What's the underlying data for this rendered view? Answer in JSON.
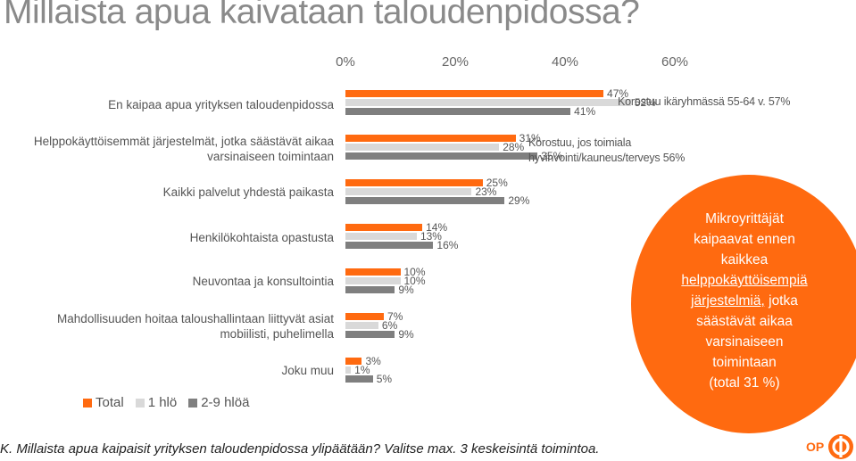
{
  "title": "Millaista apua kaivataan taloudenpidossa?",
  "footer": "K. Millaista apua kaipaisit yrityksen taloudenpidossa ylipäätään? Valitse max. 3 keskeisintä toimintoa.",
  "logo": {
    "text": "OP",
    "icon": "op-logo-icon"
  },
  "colors": {
    "total": "#ff6a10",
    "one_person": "#d9d9d9",
    "two_nine": "#7f7f7f",
    "highlight": "#ff6a10"
  },
  "chart_data": {
    "type": "bar",
    "orientation": "horizontal",
    "xlim": [
      0,
      60
    ],
    "x_ticks": [
      "0%",
      "20%",
      "40%",
      "60%"
    ],
    "legend_position": "bottom-left",
    "categories": [
      "En kaipaa apua yrityksen taloudenpidossa",
      "Helppokäyttöisemmät järjestelmät, jotka säästävät aikaa varsinaiseen toimintaan",
      "Kaikki palvelut yhdestä paikasta",
      "Henkilökohtaista opastusta",
      "Neuvontaa ja konsultointia",
      "Mahdollisuuden hoitaa taloushallintaan liittyvät asiat mobiilisti, puhelimella",
      "Joku muu"
    ],
    "series": [
      {
        "name": "Total",
        "values": [
          47,
          31,
          25,
          14,
          10,
          7,
          3
        ],
        "labels": [
          "47%",
          "31%",
          "25%",
          "14%",
          "10%",
          "7%",
          "3%"
        ]
      },
      {
        "name": "1 hlö",
        "values": [
          52,
          28,
          23,
          13,
          10,
          6,
          1
        ],
        "labels": [
          "52%",
          "28%",
          "23%",
          "13%",
          "10%",
          "6%",
          "1%"
        ]
      },
      {
        "name": "2-9 hlöä",
        "values": [
          41,
          35,
          29,
          16,
          9,
          9,
          5
        ],
        "labels": [
          "41%",
          "35%",
          "29%",
          "16%",
          "9%",
          "9%",
          "5%"
        ]
      }
    ],
    "annotations": [
      {
        "category": 0,
        "text": "Korostuu ikäryhmässä 55-64 v. 57%"
      },
      {
        "category": 1,
        "lines": [
          "Korostuu, jos toimiala",
          "hyvinvointi/kauneus/terveys 56%"
        ]
      }
    ]
  },
  "callout": {
    "lines": [
      {
        "text": "Mikroyrittäjät",
        "underline": false
      },
      {
        "text": "kaipaavat ennen",
        "underline": false
      },
      {
        "text": "kaikkea",
        "underline": false
      },
      {
        "text": "helppokäyttöisempiä",
        "underline": true
      },
      {
        "text": "järjestelmiä,",
        "underline": true,
        "tail": " jotka"
      },
      {
        "text": "säästävät aikaa",
        "underline": false
      },
      {
        "text": "varsinaiseen",
        "underline": false
      },
      {
        "text": "toimintaan",
        "underline": false
      },
      {
        "text": "(total 31 %)",
        "underline": false
      }
    ]
  }
}
